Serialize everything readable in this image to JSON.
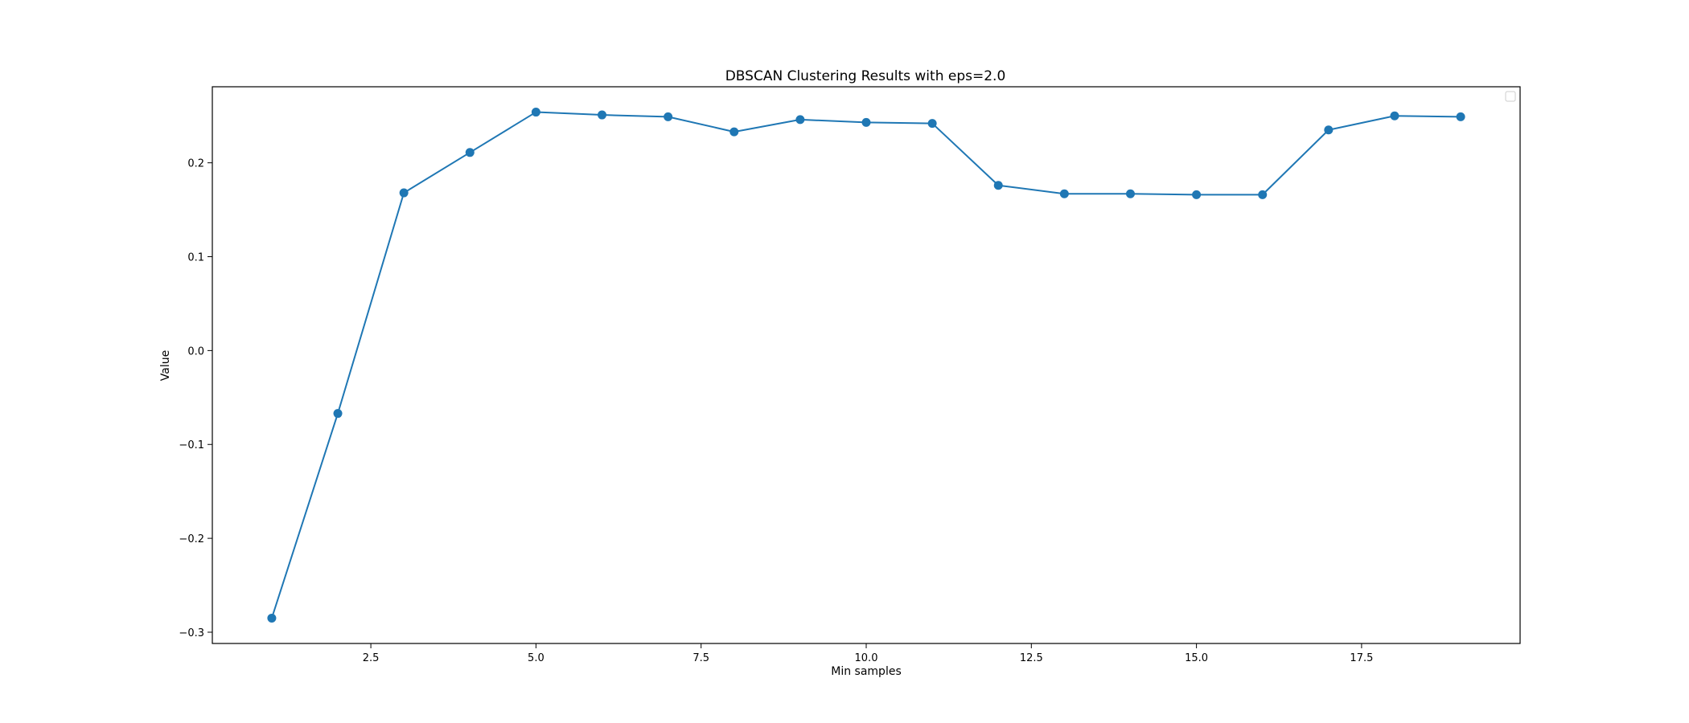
{
  "chart_data": {
    "type": "line",
    "title": "DBSCAN Clustering Results with eps=2.0",
    "xlabel": "Min samples",
    "ylabel": "Value",
    "xlim": [
      0.1,
      19.9
    ],
    "ylim": [
      -0.312,
      0.281
    ],
    "x_ticks": [
      2.5,
      5.0,
      7.5,
      10.0,
      12.5,
      15.0,
      17.5
    ],
    "x_tick_labels": [
      "2.5",
      "5.0",
      "7.5",
      "10.0",
      "12.5",
      "15.0",
      "17.5"
    ],
    "y_ticks": [
      -0.3,
      -0.2,
      -0.1,
      0.0,
      0.1,
      0.2
    ],
    "y_tick_labels": [
      "−0.3",
      "−0.2",
      "−0.1",
      "0.0",
      "0.1",
      "0.2"
    ],
    "grid": false,
    "legend": {
      "location": "top-right",
      "entries": []
    },
    "series": [
      {
        "color": "#1f77b4",
        "marker": "circle",
        "x": [
          1,
          2,
          3,
          4,
          5,
          6,
          7,
          8,
          9,
          10,
          11,
          12,
          13,
          14,
          15,
          16,
          17,
          18,
          19
        ],
        "y": [
          -0.285,
          -0.067,
          0.168,
          0.211,
          0.254,
          0.251,
          0.249,
          0.233,
          0.246,
          0.243,
          0.242,
          0.176,
          0.167,
          0.167,
          0.166,
          0.166,
          0.235,
          0.25,
          0.249
        ]
      }
    ]
  }
}
